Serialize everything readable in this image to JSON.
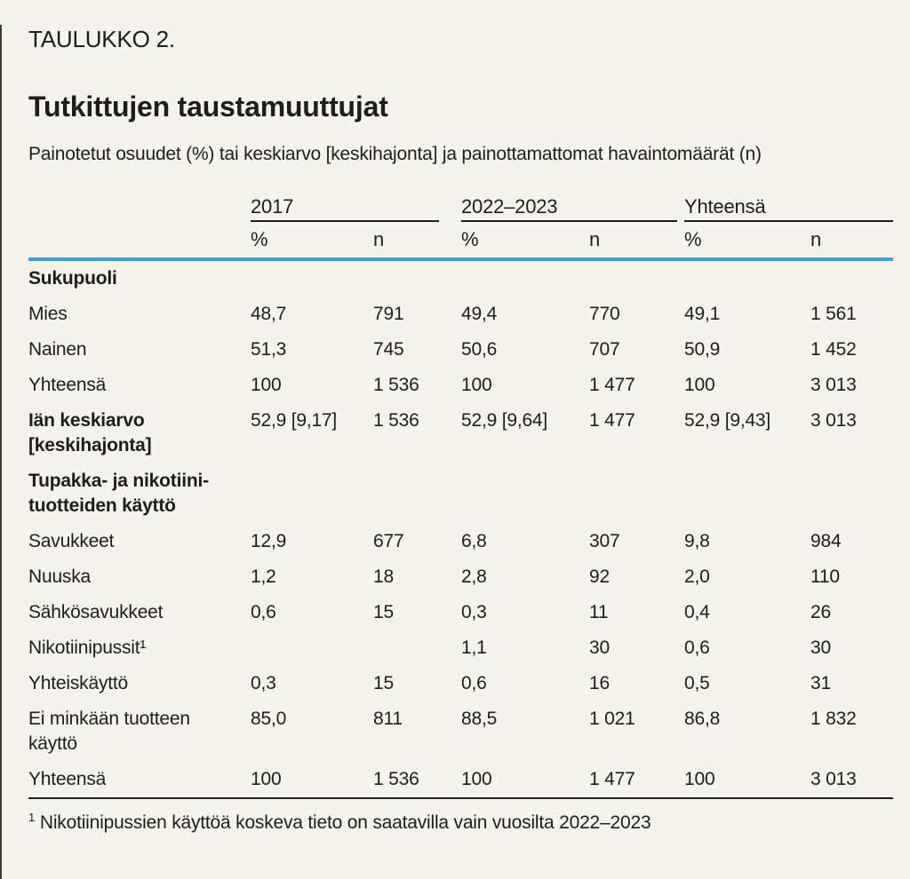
{
  "page": {
    "kicker": "TAULUKKO 2.",
    "title": "Tutkittujen taustamuuttujat",
    "subtitle": "Painotetut osuudet (%) tai keskiarvo [keskihajonta] ja painottamattomat havaintomäärät (n)",
    "footnote_marker": "1",
    "footnote_text": "Nikotiinipussien käyttöä koskeva tieto on saatavilla vain vuosilta 2022–2023"
  },
  "colors": {
    "background": "#f5f3ee",
    "text": "#1d1d1b",
    "accent_blue": "#459fd6"
  },
  "table": {
    "column_groups": [
      {
        "label": "2017"
      },
      {
        "label": "2022–2023"
      },
      {
        "label": "Yhteensä"
      }
    ],
    "subheaders": [
      "%",
      "n",
      "%",
      "n",
      "%",
      "n"
    ],
    "rows": [
      {
        "type": "section",
        "label": "Sukupuoli"
      },
      {
        "type": "data",
        "label": "Mies",
        "values": [
          "48,7",
          "791",
          "49,4",
          "770",
          "49,1",
          "1 561"
        ]
      },
      {
        "type": "data",
        "label": "Nainen",
        "values": [
          "51,3",
          "745",
          "50,6",
          "707",
          "50,9",
          "1 452"
        ]
      },
      {
        "type": "data",
        "label": "Yhteensä",
        "values": [
          "100",
          "1 536",
          "100",
          "1 477",
          "100",
          "3 013"
        ]
      },
      {
        "type": "data",
        "bold_label": true,
        "label": "Iän keskiarvo\n[keskihajonta]",
        "values": [
          "52,9 [9,17]",
          "1 536",
          "52,9 [9,64]",
          "1 477",
          "52,9 [9,43]",
          "3 013"
        ]
      },
      {
        "type": "section",
        "label": "Tupakka- ja nikotiini-\ntuotteiden käyttö"
      },
      {
        "type": "data",
        "label": "Savukkeet",
        "values": [
          "12,9",
          "677",
          "6,8",
          "307",
          "9,8",
          "984"
        ]
      },
      {
        "type": "data",
        "label": "Nuuska",
        "values": [
          "1,2",
          "18",
          "2,8",
          "92",
          "2,0",
          "110"
        ]
      },
      {
        "type": "data",
        "label": "Sähkösavukkeet",
        "values": [
          "0,6",
          "15",
          "0,3",
          "11",
          "0,4",
          "26"
        ]
      },
      {
        "type": "data",
        "label": "Nikotiinipussit¹",
        "values": [
          "",
          "",
          "1,1",
          "30",
          "0,6",
          "30"
        ]
      },
      {
        "type": "data",
        "label": "Yhteiskäyttö",
        "values": [
          "0,3",
          "15",
          "0,6",
          "16",
          "0,5",
          "31"
        ]
      },
      {
        "type": "data",
        "label": "Ei minkään tuotteen\nkäyttö",
        "values": [
          "85,0",
          "811",
          "88,5",
          "1 021",
          "86,8",
          "1 832"
        ]
      },
      {
        "type": "data",
        "label": "Yhteensä",
        "values": [
          "100",
          "1 536",
          "100",
          "1 477",
          "100",
          "3 013"
        ]
      }
    ]
  }
}
